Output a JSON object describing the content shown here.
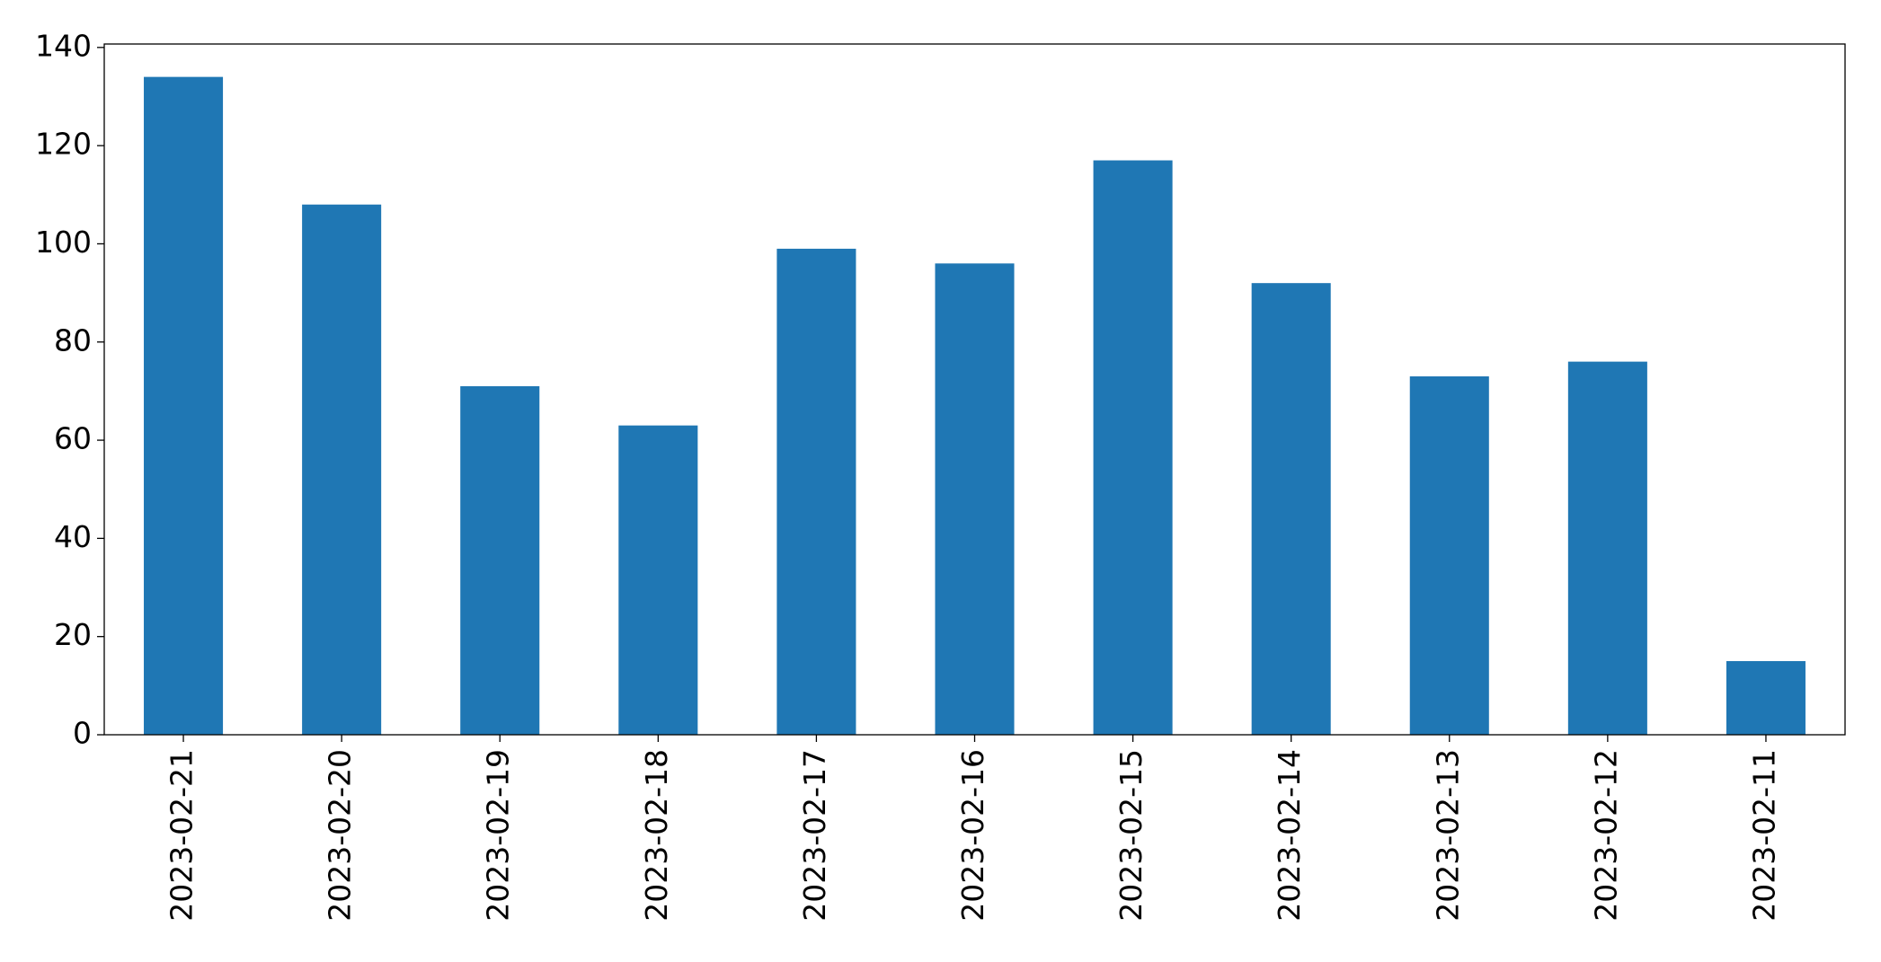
{
  "chart_data": {
    "type": "bar",
    "categories": [
      "2023-02-21",
      "2023-02-20",
      "2023-02-19",
      "2023-02-18",
      "2023-02-17",
      "2023-02-16",
      "2023-02-15",
      "2023-02-14",
      "2023-02-13",
      "2023-02-12",
      "2023-02-11"
    ],
    "values": [
      134,
      108,
      71,
      63,
      99,
      96,
      117,
      92,
      73,
      76,
      15
    ],
    "color": "#1f77b4",
    "ylim": [
      0,
      140.7
    ],
    "yticks": [
      0,
      20,
      40,
      60,
      80,
      100,
      120,
      140
    ],
    "grid": false
  }
}
